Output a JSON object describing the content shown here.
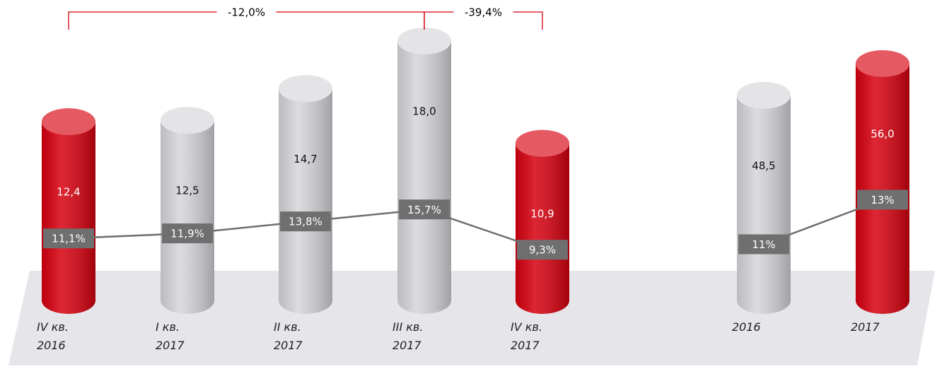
{
  "chart_data": [
    {
      "type": "bar",
      "categories": [
        "IV кв.\n2016",
        "I кв.\n2017",
        "II кв.\n2017",
        "III кв.\n2017",
        "IV кв.\n2017"
      ],
      "series": [
        {
          "values": [
            12.4,
            12.5,
            14.7,
            18.0,
            10.9
          ],
          "value_labels": [
            "12,4",
            "12,5",
            "14,7",
            "18,0",
            "10,9"
          ],
          "colors": [
            "#d7000f",
            "#d6d6db",
            "#d6d6db",
            "#d6d6db",
            "#d7000f"
          ]
        },
        {
          "type": "line",
          "color": "#6f6f6f",
          "values": [
            11.1,
            11.9,
            13.8,
            15.7,
            9.3
          ],
          "value_labels": [
            "11,1%",
            "11,9%",
            "13,8%",
            "15,7%",
            "9,3%"
          ]
        }
      ],
      "annotations": [
        {
          "text": "-12,0%",
          "from": 0,
          "to": 3
        },
        {
          "text": "-39,4%",
          "from": 3,
          "to": 4
        }
      ]
    },
    {
      "type": "bar",
      "categories": [
        "2016",
        "2017"
      ],
      "series": [
        {
          "values": [
            48.5,
            56.0
          ],
          "value_labels": [
            "48,5",
            "56,0"
          ],
          "colors": [
            "#d6d6db",
            "#d7000f"
          ]
        },
        {
          "type": "line",
          "color": "#6f6f6f",
          "values": [
            11,
            13
          ],
          "value_labels": [
            "11%",
            "13%"
          ]
        }
      ]
    }
  ]
}
